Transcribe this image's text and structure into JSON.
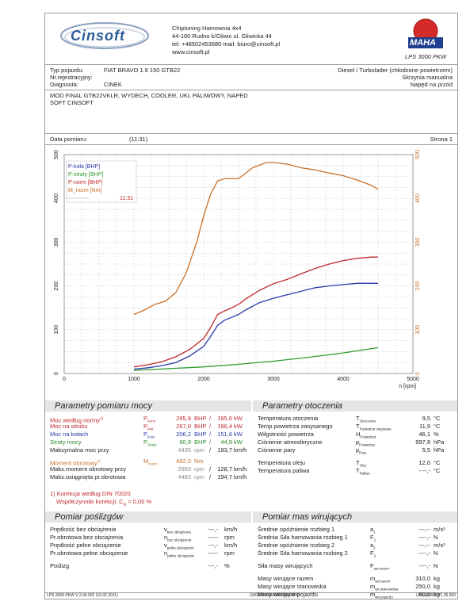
{
  "header": {
    "company": "Chiptuning Hamownia 4x4",
    "address": "44-160 Rudno k/Gliwic ul. Gliwicka 44",
    "contact": "tel: +48502453680 mail: biuro@cinsoft.pl",
    "web": "www.cinsoft.pl",
    "logo_text": "Cinsoft",
    "maha_text": "MAHA",
    "maha_sub": "LPS 3000 PKW"
  },
  "vehicle": {
    "type_label": "Typ pojazdu:",
    "type_value": "FIAT BRAVO 1.9 150 GTB22",
    "reg_label": "Nr.rejestracyjny:",
    "reg_value": "",
    "diag_label": "Diagnosta:",
    "diag_value": "CINEK",
    "engine": "Diesel / Turbolader (chłodzone powietrzem)",
    "gearbox": "Skrzynia manualna",
    "drive": "Napęd na przód",
    "mods_1": "MOD FINAL GTB22VKLR, WYDECH, COOLER, UKL PALIWOWY, NAPED",
    "mods_2": "SOFT CINSOFT",
    "date_label": "Data pomiaru:",
    "date_value": "(11:31)",
    "page_label": "Strona 1"
  },
  "chart_data": {
    "type": "line",
    "xlabel": "n [rpm]",
    "xlim": [
      0,
      5000
    ],
    "ylim": [
      0,
      500
    ],
    "x_ticks": [
      0,
      1000,
      2000,
      3000,
      4000,
      5000
    ],
    "y_ticks": [
      0,
      100,
      200,
      300,
      400,
      500
    ],
    "legend": {
      "items": [
        "P-koła [BHP]",
        "P-straty [BHP]",
        "P-norm [BHP]",
        "M_norm [Nm]"
      ],
      "time": "11:31"
    },
    "legend_pos": "top-left",
    "grid": true,
    "series": [
      {
        "name": "P-koła [BHP]",
        "color": "#2b3aa8",
        "x": [
          1000,
          1200,
          1400,
          1600,
          1800,
          2000,
          2100,
          2200,
          2300,
          2400,
          2500,
          2600,
          2800,
          3000,
          3200,
          3400,
          3600,
          3800,
          4000,
          4200,
          4400,
          4500
        ],
        "y": [
          10,
          13,
          18,
          25,
          40,
          62,
          85,
          110,
          122,
          128,
          135,
          145,
          162,
          172,
          180,
          188,
          196,
          200,
          203,
          206,
          206,
          206
        ]
      },
      {
        "name": "P-straty [BHP]",
        "color": "#2e9a2e",
        "x": [
          1000,
          1500,
          2000,
          2500,
          3000,
          3500,
          4000,
          4500
        ],
        "y": [
          7,
          11,
          15,
          21,
          28,
          37,
          47,
          59
        ]
      },
      {
        "name": "P-norm [BHP]",
        "color": "#c0282a",
        "x": [
          1000,
          1200,
          1400,
          1600,
          1800,
          2000,
          2100,
          2200,
          2300,
          2400,
          2500,
          2600,
          2800,
          3000,
          3200,
          3400,
          3600,
          3800,
          4000,
          4200,
          4400,
          4500
        ],
        "y": [
          15,
          20,
          27,
          38,
          55,
          80,
          105,
          135,
          143,
          150,
          158,
          170,
          190,
          205,
          215,
          228,
          240,
          250,
          258,
          263,
          266,
          266
        ]
      },
      {
        "name": "M_norm [Nm]",
        "color": "#c8702a",
        "x": [
          1000,
          1150,
          1300,
          1450,
          1600,
          1750,
          1900,
          2000,
          2100,
          2200,
          2300,
          2500,
          2700,
          2900,
          3000,
          3200,
          3400,
          3600,
          3800,
          4000,
          4200,
          4400,
          4500
        ],
        "y": [
          135,
          145,
          158,
          165,
          185,
          230,
          300,
          360,
          410,
          440,
          445,
          445,
          470,
          482,
          482,
          478,
          470,
          465,
          458,
          452,
          442,
          430,
          421
        ]
      }
    ]
  },
  "params": {
    "title": "Parametry pomiaru mocy",
    "rows": [
      {
        "label": "Moc według normy",
        "sup": "1)",
        "sym": "P",
        "sub": "norm",
        "v1": "265,9",
        "u1": "BHP",
        "v2": "195,6",
        "u2": "kW",
        "cls": "red"
      },
      {
        "label": "Moc na silniku",
        "sup": "",
        "sym": "P",
        "sub": "Mot",
        "v1": "267,0",
        "u1": "BHP",
        "v2": "196,4",
        "u2": "kW",
        "cls": "red"
      },
      {
        "label": "Moc na kołach",
        "sup": "",
        "sym": "P",
        "sub": "Koła",
        "v1": "206,2",
        "u1": "BHP",
        "v2": "151,6",
        "u2": "kW",
        "cls": "blu"
      },
      {
        "label": "Straty mocy",
        "sup": "",
        "sym": "P",
        "sub": "Straty",
        "v1": "60,9",
        "u1": "BHP",
        "v2": "44,8",
        "u2": "kW",
        "cls": "grn"
      },
      {
        "label": "Maksymalna moc przy",
        "sup": "",
        "sym": "",
        "sub": "",
        "v1": "4435",
        "u1": "rpm",
        "v2": "193,7",
        "u2": "km/h",
        "cls": ""
      },
      {
        "label": "Moment obrotowy",
        "sup": "1)",
        "sym": "M",
        "sub": "Norm",
        "v1": "482,0",
        "u1": "Nm",
        "v2": "",
        "u2": "",
        "cls": "org"
      },
      {
        "label": "Maks.moment obrotowy przy",
        "sup": "",
        "sym": "",
        "sub": "",
        "v1": "2950",
        "u1": "rpm",
        "v2": "128,7",
        "u2": "km/h",
        "cls": ""
      },
      {
        "label": "Maks.osiągnięta pr.obrotowa",
        "sup": "",
        "sym": "",
        "sub": "",
        "v1": "4460",
        "u1": "rpm",
        "v2": "194,7",
        "u2": "km/h",
        "cls": ""
      }
    ],
    "note1": "1) Korekcja według DIN 70020",
    "note2": "Współczynniki korekcji: C",
    "note2_sub": "iy",
    "note2_val": "=   0,00 %"
  },
  "environment": {
    "title": "Parametry otoczenia",
    "rows": [
      {
        "label": "Temperatura otoczenia",
        "sym": "T",
        "sub": "Otoczenia",
        "val": "9,5",
        "unit": "°C"
      },
      {
        "label": "Temp.powietrza zasysanego",
        "sym": "T",
        "sub": "Powietrza zasysane",
        "val": "11,9",
        "unit": "°C"
      },
      {
        "label": "Wilgotność powietrza",
        "sym": "H",
        "sub": "Powietrza",
        "val": "46,1",
        "unit": "%"
      },
      {
        "label": "Ciśnienie atmosferyczne",
        "sym": "p",
        "sub": "Powietrza",
        "val": "997,8",
        "unit": "hPa"
      },
      {
        "label": "Ciśnienie pary",
        "sym": "p",
        "sub": "Pary",
        "val": "5,5",
        "unit": "hPa"
      },
      {
        "label": "Temperatura oleju",
        "sym": "T",
        "sub": "Olej",
        "val": "12,0",
        "unit": "°C"
      },
      {
        "label": "Temperatura paliwa",
        "sym": "T",
        "sub": "Paliwo",
        "val": "----,-",
        "unit": "°C"
      }
    ]
  },
  "losses": {
    "title": "Pomiar poślizgów",
    "rows": [
      {
        "label": "Prędkość bez obciążenia",
        "sym": "v",
        "sub": "bez obciążenia",
        "val": "---,-",
        "unit": "km/h"
      },
      {
        "label": "Pr.obrotowa bez obciążenia",
        "sym": "n",
        "sub": "bez obciążenia",
        "val": "-----",
        "unit": "rpm"
      },
      {
        "label": "Prędkość pełne obciążenie",
        "sym": "v",
        "sub": "pełne obciążenie",
        "val": "---,-",
        "unit": "km/h"
      },
      {
        "label": "Pr.obrotowa pełne obciążenie",
        "sym": "n",
        "sub": "pełne obciążenie",
        "val": "-----",
        "unit": "rpm"
      },
      {
        "label": "Poślizg",
        "sym": "",
        "sub": "",
        "val": "---,-",
        "unit": "%"
      }
    ]
  },
  "masses": {
    "title": "Pomiar mas wirujących",
    "rows": [
      {
        "label": "Średnie opóźnienie rozbieg 1",
        "sym": "a",
        "sub": "1",
        "val": "---,--",
        "unit": "m/s²"
      },
      {
        "label": "Średnia Siła hamowania rozbieg 1",
        "sym": "F",
        "sub": "1",
        "val": "----,-",
        "unit": "N"
      },
      {
        "label": "Średnie opóźnienie rozbieg 2",
        "sym": "a",
        "sub": "2",
        "val": "---,--",
        "unit": "m/s²"
      },
      {
        "label": "Średnie Siła hamowania rozbieg 2",
        "sym": "F",
        "sub": "2",
        "val": "----,-",
        "unit": "N"
      },
      {
        "label": "Siła masy wirujących",
        "sym": "F",
        "sub": "wir.razem",
        "val": "----,-",
        "unit": "N"
      },
      {
        "label": "Masy wirujące razem",
        "sym": "m",
        "sub": "wir.razem",
        "val": "310,0",
        "unit": "kg"
      },
      {
        "label": "Masy wirujące stanowiska",
        "sym": "m",
        "sub": "wir.stanowiska",
        "val": "250,0",
        "unit": "kg"
      },
      {
        "label": "Masy wirujące pojazdu",
        "sym": "m",
        "sub": "wir.pojazdu",
        "val": "60,0",
        "unit": "kg"
      }
    ]
  },
  "footer": {
    "left": "LPS 3000 PKW  V 2.00.002 (10.02.2011)",
    "center": "(100/000/000/000/000/0000)",
    "right": "LPS-EURO V1.35.000"
  }
}
